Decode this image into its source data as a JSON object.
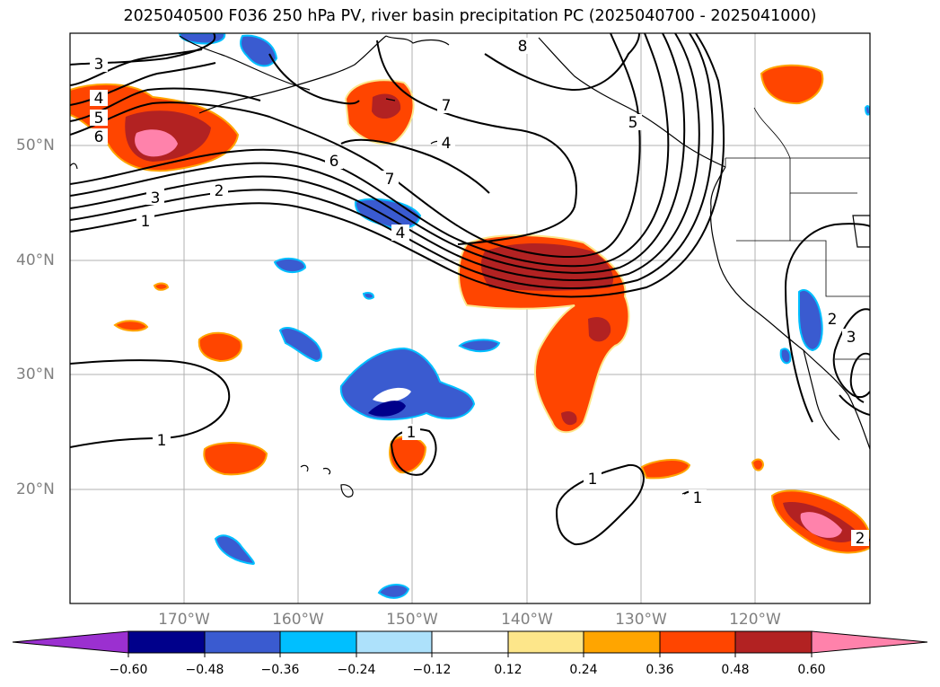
{
  "title": "2025040500 F036 250 hPa PV, river basin precipitation PC (2025040700 - 2025041000)",
  "lat_labels": [
    "50°N",
    "40°N",
    "30°N",
    "20°N"
  ],
  "lon_labels": [
    "170°W",
    "160°W",
    "150°W",
    "140°W",
    "130°W",
    "120°W"
  ],
  "contour_labels": [
    "3",
    "4",
    "5",
    "6",
    "3",
    "2",
    "1",
    "6",
    "7",
    "7",
    "4",
    "8",
    "5",
    "4",
    "1",
    "1",
    "1",
    "1",
    "2",
    "3",
    "2"
  ],
  "colorbar": {
    "ticks": [
      "−0.60",
      "−0.48",
      "−0.36",
      "−0.24",
      "−0.12",
      "0.12",
      "0.24",
      "0.36",
      "0.48",
      "0.60"
    ],
    "colors": [
      "#9b30d0",
      "#00008b",
      "#3a5bd0",
      "#00bfff",
      "#ade1fb",
      "#ffffff",
      "#fde68a",
      "#ffa500",
      "#ff4500",
      "#b22222",
      "#ff82ab"
    ]
  }
}
